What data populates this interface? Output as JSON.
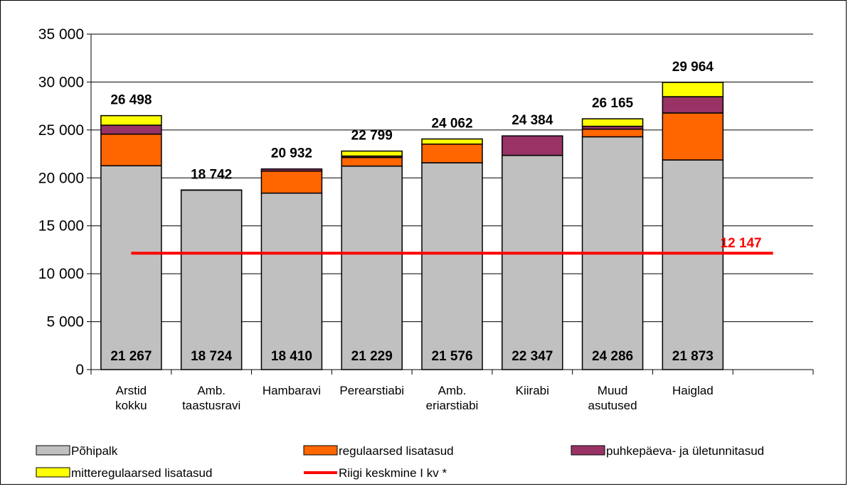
{
  "chart_data": {
    "type": "bar",
    "stacked": true,
    "categories": [
      [
        "Arstid",
        "kokku"
      ],
      [
        "Amb.",
        "taastusravi"
      ],
      [
        "Hambaravi"
      ],
      [
        "Perearstiabi"
      ],
      [
        "Amb.",
        "eriarstiabi"
      ],
      [
        "Kiirabi"
      ],
      [
        "Muud",
        "asutused"
      ],
      [
        "Haiglad"
      ],
      [
        ""
      ]
    ],
    "series": [
      {
        "name": "Põhipalk",
        "color": "#c0c0c0",
        "values": [
          21267,
          18724,
          18410,
          21229,
          21576,
          22347,
          24286,
          21873,
          null
        ]
      },
      {
        "name": "regulaarsed lisatasud",
        "color": "#ff6600",
        "values": [
          3300,
          0,
          2300,
          900,
          1950,
          0,
          800,
          4900,
          null
        ]
      },
      {
        "name": "puhkepäeva- ja ületunnitasud",
        "color": "#993366",
        "values": [
          931,
          18,
          222,
          150,
          0,
          2037,
          300,
          1700,
          null
        ]
      },
      {
        "name": "mitteregulaarsed lisatasud",
        "color": "#ffff00",
        "values": [
          1000,
          0,
          0,
          520,
          536,
          0,
          779,
          1491,
          null
        ]
      }
    ],
    "base_labels": [
      "21 267",
      "18 724",
      "18 410",
      "21 229",
      "21 576",
      "22 347",
      "24 286",
      "21 873",
      ""
    ],
    "total_labels": [
      "26 498",
      "18 742",
      "20 932",
      "22 799",
      "24 062",
      "24 384",
      "26 165",
      "29 964",
      ""
    ],
    "average_line": {
      "name": "Riigi keskmine I kv *",
      "value": 12147,
      "label": "12 147",
      "color": "#ff0000"
    },
    "y_ticks": [
      "0",
      "5 000",
      "10 000",
      "15 000",
      "20 000",
      "25 000",
      "30 000",
      "35 000"
    ],
    "ylim": [
      0,
      35000
    ],
    "grid": true,
    "legend_position": "bottom"
  }
}
